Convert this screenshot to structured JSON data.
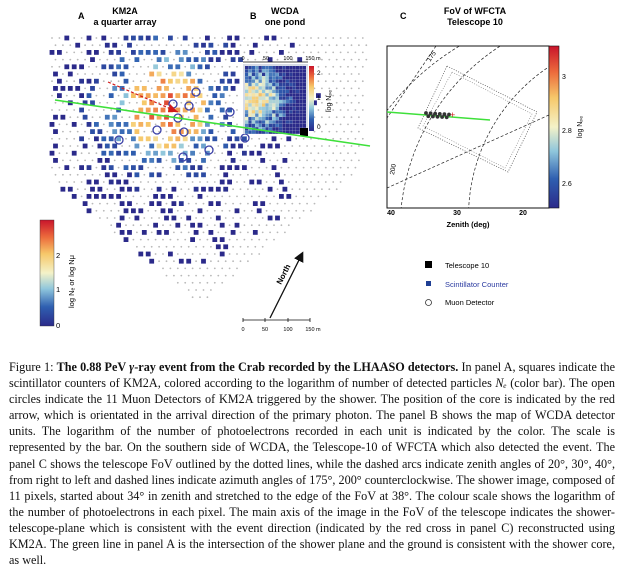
{
  "panels": {
    "a": {
      "letter": "A",
      "title1": "KM2A",
      "title2": "a quarter array"
    },
    "b": {
      "letter": "B",
      "title1": "WCDA",
      "title2": "one pond"
    },
    "c": {
      "letter": "C",
      "title1": "FoV of WFCTA",
      "title2": "Telescope 10"
    }
  },
  "colorbar_a": {
    "label": "log Nₑ or log Nμ",
    "ticks": [
      "2",
      "1",
      "0"
    ],
    "levels": [
      2,
      1,
      0
    ]
  },
  "colorbar_b": {
    "label": "log Nₚₑ",
    "ticks": [
      "2",
      "1",
      "0"
    ],
    "levels": [
      2,
      1,
      0
    ]
  },
  "colorbar_c": {
    "label": "log Nₚₑ",
    "ticks": [
      "3",
      "2.8",
      "2.6"
    ],
    "levels": [
      3,
      2.8,
      2.6
    ]
  },
  "wcda_scale": {
    "ticks": [
      "0",
      "50",
      "100",
      "150 m"
    ]
  },
  "km2a_scale": {
    "ticks": [
      "0",
      "50",
      "100",
      "150 m"
    ]
  },
  "north_label": "North",
  "fov": {
    "xlabel": "Zenith (deg)",
    "xticks": [
      "40",
      "30",
      "20"
    ],
    "arc_labels": [
      "175",
      "200"
    ],
    "shower_pixels": 11
  },
  "legend": [
    {
      "symbol": "square-black",
      "label": "Telescope 10"
    },
    {
      "symbol": "square-blue",
      "label": "Scintillator Counter"
    },
    {
      "symbol": "circle",
      "label": "Muon Detector"
    }
  ],
  "colors": {
    "scintillator": "#1f3f94",
    "green_line": "#3ee03a",
    "arrow": "#d11a1a",
    "legend_blue_text": "#2a3aa0"
  },
  "caption": {
    "lead": "Figure 1: ",
    "bold_a": "The 0.88 PeV ",
    "gamma": "γ",
    "bold_b": "-ray event from the Crab recorded by the LHAASO detectors.",
    "body1": " In panel A, squares indicate the scintillator counters of KM2A, colored according to the logarithm of number of detected particles ",
    "ne": "Nₑ",
    "body2": " (color bar). The open circles indicate the 11 Muon Detectors of KM2A triggered by the shower. The position of the core is indicated by the red arrow, which is orientated in the arrival direction of the primary photon. The panel B shows the map of WCDA detector units. The logarithm of the number of photoelectrons recorded in each unit is indicated by the color. The scale is represented by the bar. On the southern side of WCDA, the Telescope-10 of WFCTA which also detected the event. The panel C shows the telescope FoV outlined by the dotted lines, while the dashed arcs indicate zenith angles of 20°, 30°, 40°, from right to left and dashed lines indicate azimuth angles of 175°, 200° counterclockwise. The shower image, composed of 11 pixels, started about 34° in zenith and stretched to the edge of the FoV at 38°. The colour scale shows the logarithm of the number of photoelectrons in each pixel. The main axis of the image in the FoV of the telescope indicates the shower-telescope-plane which is consistent with the event direction (indicated by the red cross in panel C) reconstructed using KM2A. The green line in panel A is the intersection of the shower plane and the ground is consistent with the shower core, as well."
  }
}
